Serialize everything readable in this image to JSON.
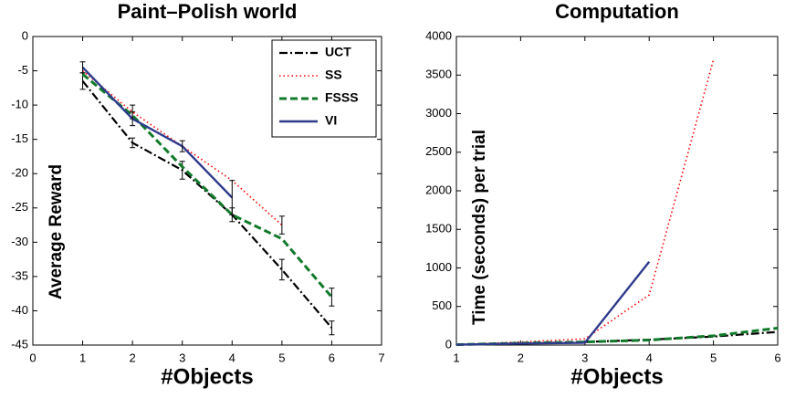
{
  "chart_data": [
    {
      "type": "line",
      "title": "Paint–Polish world",
      "x_label": "#Objects",
      "y_label": "Average Reward",
      "x": [
        1,
        2,
        3,
        4,
        5,
        6
      ],
      "xlim": [
        0,
        7
      ],
      "xticks": [
        0,
        1,
        2,
        3,
        4,
        5,
        6,
        7
      ],
      "ylim": [
        -45,
        0
      ],
      "yticks": [
        -45,
        -40,
        -35,
        -30,
        -25,
        -20,
        -15,
        -10,
        -5,
        0
      ],
      "legend": "upper right",
      "series": [
        {
          "name": "UCT",
          "color": "#000000",
          "line_style": "dash-dot",
          "values": [
            -6.5,
            -15.5,
            -19.5,
            -26,
            -34,
            -42.5
          ],
          "errors": [
            1.2,
            0.7,
            1.3,
            1,
            1.5,
            1
          ]
        },
        {
          "name": "SS",
          "color": "#ff0000",
          "line_style": "dotted",
          "values": [
            -5,
            -11,
            -16,
            -21,
            -27.5,
            null
          ],
          "errors": [
            null,
            1,
            null,
            null,
            1.3,
            null
          ]
        },
        {
          "name": "FSSS",
          "color": "#117a2a",
          "line_style": "dashed",
          "values": [
            -5.5,
            -11.5,
            -19,
            -26,
            -29.5,
            -38
          ],
          "errors": [
            null,
            null,
            null,
            null,
            null,
            1.3
          ]
        },
        {
          "name": "VI",
          "color": "#2e3a8c",
          "line_style": "solid",
          "values": [
            -4.5,
            -12,
            -16,
            -23.5,
            null,
            null
          ],
          "errors": [
            0.8,
            1,
            0.8,
            2.5,
            null,
            null
          ]
        }
      ]
    },
    {
      "type": "line",
      "title": "Computation",
      "x_label": "#Objects",
      "y_label": "Time (seconds) per trial",
      "x": [
        1,
        2,
        3,
        4,
        5,
        6
      ],
      "xlim": [
        1,
        6
      ],
      "xticks": [
        1,
        2,
        3,
        4,
        5,
        6
      ],
      "ylim": [
        0,
        4000
      ],
      "yticks": [
        0,
        500,
        1000,
        1500,
        2000,
        2500,
        3000,
        3500,
        4000
      ],
      "series": [
        {
          "name": "UCT",
          "color": "#000000",
          "line_style": "dash-dot",
          "values": [
            5,
            20,
            40,
            70,
            110,
            170
          ]
        },
        {
          "name": "SS",
          "color": "#ff0000",
          "line_style": "dotted",
          "values": [
            5,
            40,
            80,
            650,
            3700,
            null
          ]
        },
        {
          "name": "FSSS",
          "color": "#117a2a",
          "line_style": "dashed",
          "values": [
            5,
            25,
            40,
            65,
            120,
            220
          ]
        },
        {
          "name": "VI",
          "color": "#2e3a8c",
          "line_style": "solid",
          "values": [
            5,
            20,
            30,
            1080,
            null,
            null
          ]
        }
      ]
    }
  ]
}
